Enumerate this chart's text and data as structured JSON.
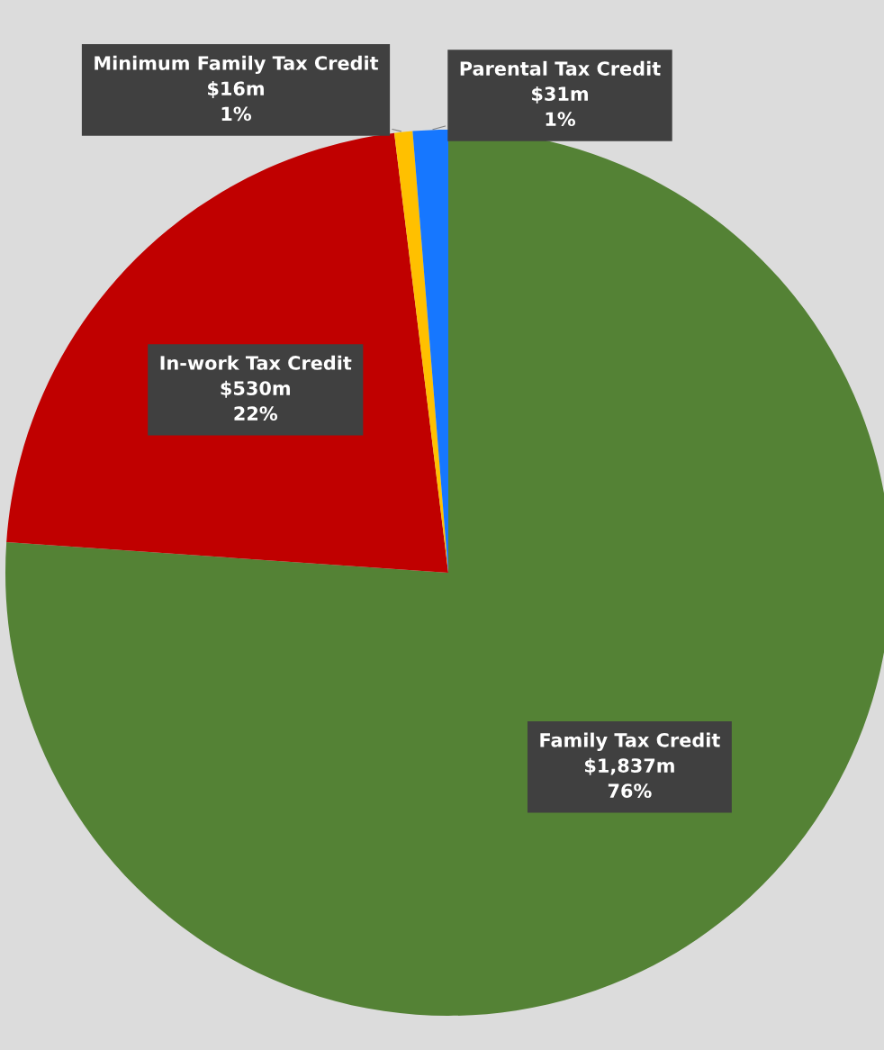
{
  "chart_data": {
    "type": "pie",
    "categories": [
      "Family Tax Credit",
      "In-work Tax Credit",
      "Minimum Family Tax Credit",
      "Parental Tax Credit"
    ],
    "values": [
      1837,
      530,
      16,
      31
    ],
    "value_labels": [
      "$1,837m",
      "$530m",
      "$16m",
      "$31m"
    ],
    "annotations": [
      "76%",
      "22%",
      "1%",
      "1%"
    ],
    "colors": [
      "#548235",
      "#c00000",
      "#ffc000",
      "#1677ff"
    ]
  }
}
